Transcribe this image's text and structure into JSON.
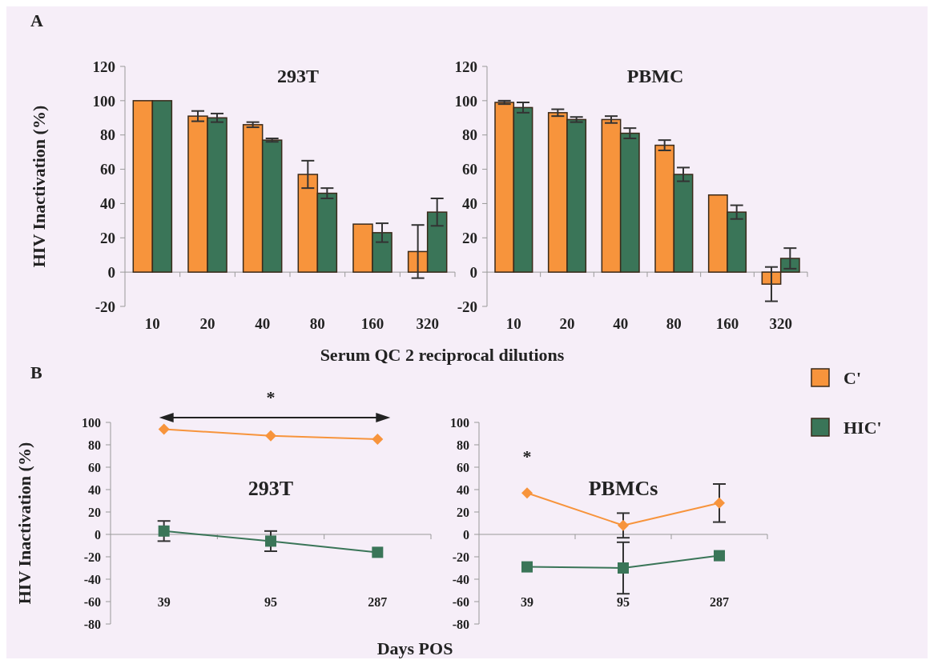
{
  "chart_data": [
    {
      "type": "bar",
      "title": "293T",
      "ylabel": "HIV Inactivation (%)",
      "xlabel": "Serum QC 2 reciprocal dilutions",
      "annotations": [
        "A"
      ],
      "categories": [
        "10",
        "20",
        "40",
        "80",
        "160",
        "320"
      ],
      "ylim": [
        -20,
        120
      ],
      "yticks": [
        -20,
        0,
        20,
        40,
        60,
        80,
        100,
        120
      ],
      "series": [
        {
          "color": "#f7943c",
          "values": [
            100,
            91,
            86,
            57,
            28,
            12
          ],
          "errors": [
            null,
            3,
            1.5,
            8,
            null,
            15.5
          ]
        },
        {
          "color": "#3a7558",
          "values": [
            100,
            90,
            77,
            46,
            23,
            35
          ],
          "errors": [
            null,
            2.5,
            1,
            3,
            5.5,
            8
          ]
        }
      ]
    },
    {
      "type": "bar",
      "title": "PBMC",
      "categories": [
        "10",
        "20",
        "40",
        "80",
        "160",
        "320"
      ],
      "ylim": [
        -20,
        120
      ],
      "yticks": [
        -20,
        0,
        20,
        40,
        60,
        80,
        100,
        120
      ],
      "legend": "bottom right",
      "series": [
        {
          "name": "C'",
          "color": "#f7943c",
          "values": [
            99,
            93,
            89,
            74,
            45,
            -7
          ],
          "errors": [
            1,
            2,
            2,
            3,
            null,
            10
          ]
        },
        {
          "name": "HIC'",
          "color": "#3a7558",
          "values": [
            96,
            89,
            81,
            57,
            35,
            8
          ],
          "errors": [
            3,
            1.5,
            3,
            4,
            4,
            6
          ]
        }
      ]
    },
    {
      "type": "line",
      "title": "293T",
      "ylabel": "HIV Inactivation (%)",
      "xlabel": "Days POS",
      "annotations": [
        "B",
        "*"
      ],
      "categories": [
        "39",
        "95",
        "287"
      ],
      "ylim": [
        -80,
        100
      ],
      "yticks": [
        -80,
        -60,
        -40,
        -20,
        0,
        20,
        40,
        60,
        80,
        100
      ],
      "series": [
        {
          "color": "#f7943c",
          "marker": "diamond",
          "values": [
            94,
            88,
            85
          ]
        },
        {
          "color": "#3a7558",
          "marker": "square",
          "values": [
            3,
            -6,
            -16
          ],
          "errors": [
            9,
            9,
            null
          ]
        }
      ]
    },
    {
      "type": "line",
      "title": "PBMCs",
      "annotations": [
        "*"
      ],
      "categories": [
        "39",
        "95",
        "287"
      ],
      "ylim": [
        -80,
        100
      ],
      "yticks": [
        -80,
        -60,
        -40,
        -20,
        0,
        20,
        40,
        60,
        80,
        100
      ],
      "series": [
        {
          "color": "#f7943c",
          "marker": "diamond",
          "values": [
            37,
            8,
            28
          ],
          "errors": [
            null,
            11,
            17
          ]
        },
        {
          "color": "#3a7558",
          "marker": "square",
          "values": [
            -29,
            -30,
            -19
          ],
          "errors": [
            null,
            23,
            null
          ]
        }
      ]
    }
  ]
}
